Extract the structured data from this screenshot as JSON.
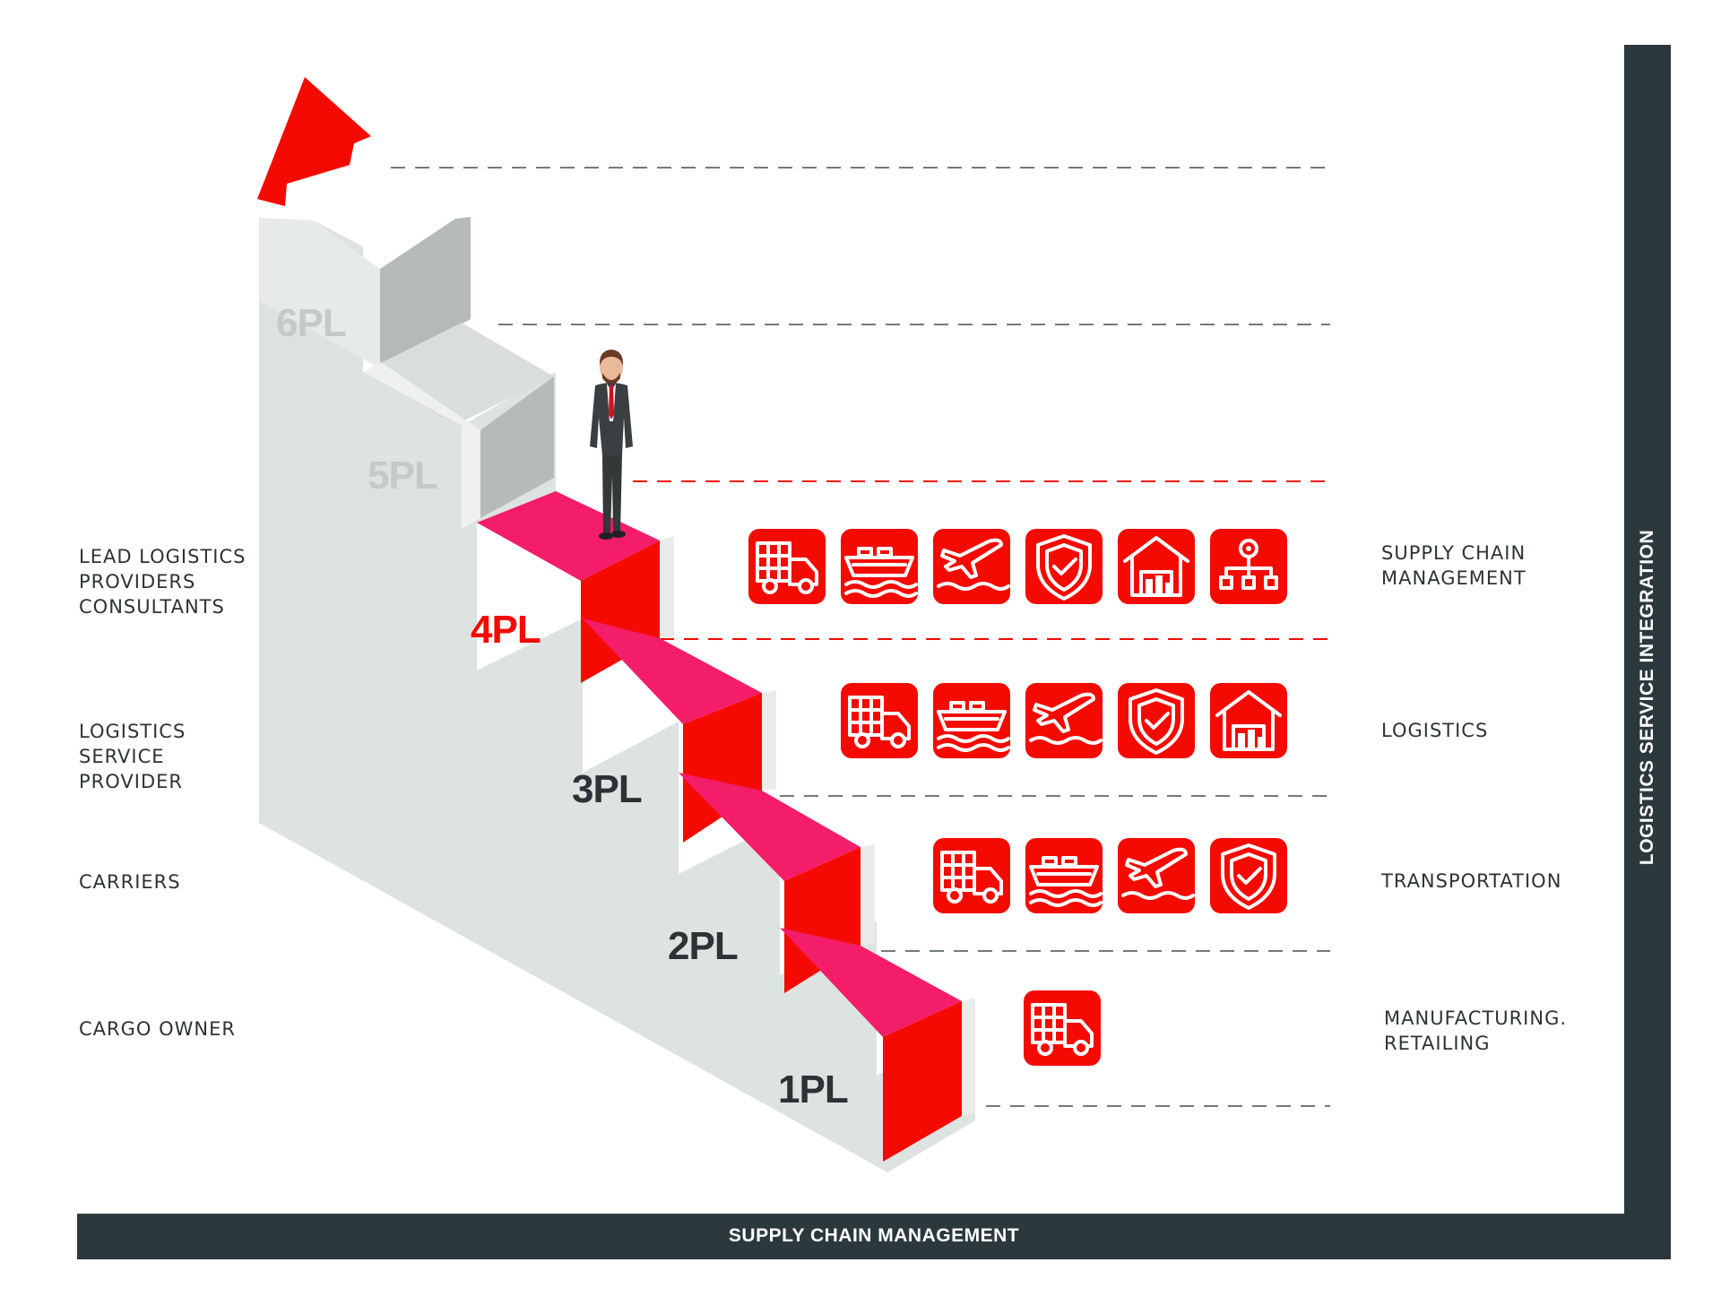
{
  "colors": {
    "red": "#f50a00",
    "pink": "#f41d6a",
    "step_light": "#dde3e1",
    "step_side": "#c9cfcd",
    "step_shadow": "#b4bbb9",
    "dark": "#2c393c",
    "faded_text": "#c4cac8"
  },
  "levels": [
    {
      "id": "1pl",
      "label": "1PL",
      "left_text": "CARGO OWNER",
      "right_text": "MANUFACTURING.\nRETAILING",
      "icons": [
        "truck-icon"
      ]
    },
    {
      "id": "2pl",
      "label": "2PL",
      "left_text": "CARRIERS",
      "right_text": "TRANSPORTATION",
      "icons": [
        "truck-icon",
        "ship-icon",
        "plane-icon",
        "shield-icon"
      ]
    },
    {
      "id": "3pl",
      "label": "3PL",
      "left_text": "LOGISTICS\nSERVICE\nPROVIDER",
      "right_text": "LOGISTICS",
      "icons": [
        "truck-icon",
        "ship-icon",
        "plane-icon",
        "shield-icon",
        "warehouse-icon"
      ]
    },
    {
      "id": "4pl",
      "label": "4PL",
      "left_text": "LEAD LOGISTICS\nPROVIDERS\nCONSULTANTS",
      "right_text": "SUPPLY CHAIN\nMANAGEMENT",
      "icons": [
        "truck-icon",
        "ship-icon",
        "plane-icon",
        "shield-icon",
        "warehouse-icon",
        "network-icon"
      ]
    },
    {
      "id": "5pl",
      "label": "5PL"
    },
    {
      "id": "6pl",
      "label": "6PL"
    }
  ],
  "x_axis_label": "SUPPLY CHAIN MANAGEMENT",
  "y_axis_label": "LOGISTICS SERVICE INTEGRATION",
  "figure": "businessman-figure",
  "arrow": "up-arrow-icon"
}
